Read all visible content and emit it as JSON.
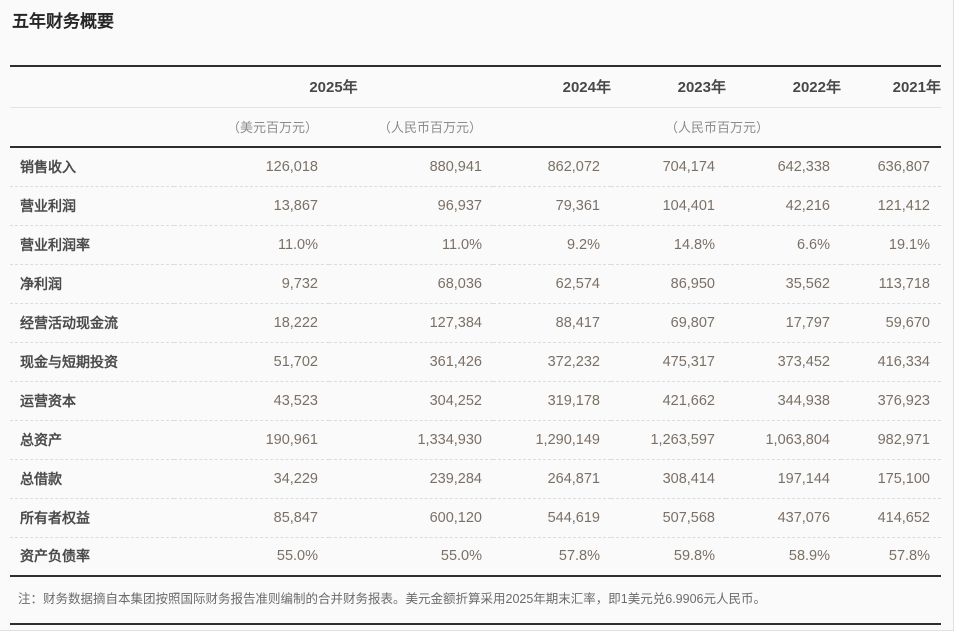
{
  "page": {
    "title": "五年财务概要",
    "note": "注：财务数据摘自本集团按照国际财务报告准则编制的合并财务报表。美元金额折算采用2025年期末汇率，即1美元兑6.9906元人民币。"
  },
  "table": {
    "year_headers": [
      "2025年",
      "2024年",
      "2023年",
      "2022年",
      "2021年"
    ],
    "unit_headers": [
      "（美元百万元）",
      "（人民币百万元）",
      "（人民币百万元）"
    ],
    "rows": [
      {
        "label": "销售收入",
        "values": [
          "126,018",
          "880,941",
          "862,072",
          "704,174",
          "642,338",
          "636,807"
        ]
      },
      {
        "label": "营业利润",
        "values": [
          "13,867",
          "96,937",
          "79,361",
          "104,401",
          "42,216",
          "121,412"
        ]
      },
      {
        "label": "营业利润率",
        "values": [
          "11.0%",
          "11.0%",
          "9.2%",
          "14.8%",
          "6.6%",
          "19.1%"
        ]
      },
      {
        "label": "净利润",
        "values": [
          "9,732",
          "68,036",
          "62,574",
          "86,950",
          "35,562",
          "113,718"
        ]
      },
      {
        "label": "经营活动现金流",
        "values": [
          "18,222",
          "127,384",
          "88,417",
          "69,807",
          "17,797",
          "59,670"
        ]
      },
      {
        "label": "现金与短期投资",
        "values": [
          "51,702",
          "361,426",
          "372,232",
          "475,317",
          "373,452",
          "416,334"
        ]
      },
      {
        "label": "运营资本",
        "values": [
          "43,523",
          "304,252",
          "319,178",
          "421,662",
          "344,938",
          "376,923"
        ]
      },
      {
        "label": "总资产",
        "values": [
          "190,961",
          "1,334,930",
          "1,290,149",
          "1,263,597",
          "1,063,804",
          "982,971"
        ]
      },
      {
        "label": "总借款",
        "values": [
          "34,229",
          "239,284",
          "264,871",
          "308,414",
          "197,144",
          "175,100"
        ]
      },
      {
        "label": "所有者权益",
        "values": [
          "85,847",
          "600,120",
          "544,619",
          "507,568",
          "437,076",
          "414,652"
        ]
      },
      {
        "label": "资产负债率",
        "values": [
          "55.0%",
          "55.0%",
          "57.8%",
          "59.8%",
          "58.9%",
          "57.8%"
        ]
      }
    ]
  },
  "colors": {
    "page_background": "#fafafa",
    "heavy_rule": "#2e2e2e",
    "row_separator": "#dcdcdc",
    "title_text": "#262626",
    "label_text": "#4b4b4b",
    "number_text": "#7b7065",
    "unit_text": "#8c8c8c",
    "note_text": "#6b6b6b"
  }
}
